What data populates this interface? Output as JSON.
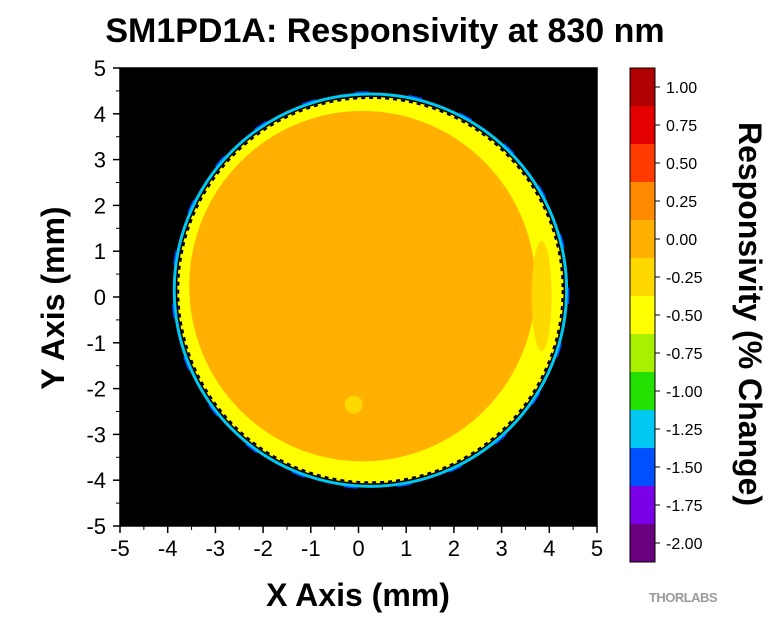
{
  "chart_data": {
    "type": "heatmap",
    "title": "SM1PD1A: Responsivity at 830 nm",
    "xlabel": "X Axis (mm)",
    "ylabel": "Y Axis (mm)",
    "xlim": [
      -5,
      5
    ],
    "ylim": [
      -5,
      5
    ],
    "x_ticks": [
      "-5",
      "-4",
      "-3",
      "-2",
      "-1",
      "0",
      "1",
      "2",
      "3",
      "4",
      "5"
    ],
    "y_ticks": [
      "5",
      "4",
      "3",
      "2",
      "1",
      "0",
      "-1",
      "-2",
      "-3",
      "-4",
      "-5"
    ],
    "background_color": "#000000",
    "detector_center": [
      0.25,
      0.15
    ],
    "detector_radius": 4.05,
    "outline_style": "dashed",
    "dominant_value": 0.0,
    "edge_band_value": -0.5,
    "colorbar": {
      "label": "Responsivity (% Change)",
      "levels": [
        1.0,
        0.75,
        0.5,
        0.25,
        0.0,
        -0.25,
        -0.5,
        -0.75,
        -1.0,
        -1.25,
        -1.5,
        -1.75,
        -2.0
      ],
      "tick_labels": [
        "1.00",
        "0.75",
        "0.50",
        "0.25",
        "0.00",
        "-0.25",
        "-0.50",
        "-0.75",
        "-1.00",
        "-1.25",
        "-1.50",
        "-1.75",
        "-2.00"
      ],
      "colors": [
        "#b00000",
        "#e50000",
        "#ff3b00",
        "#ff8a00",
        "#ffb000",
        "#ffd800",
        "#ffff00",
        "#a8f000",
        "#22e000",
        "#00c8f0",
        "#0050ff",
        "#7a00e8",
        "#6a0080"
      ]
    }
  },
  "logo": {
    "text": "THORLABS"
  }
}
